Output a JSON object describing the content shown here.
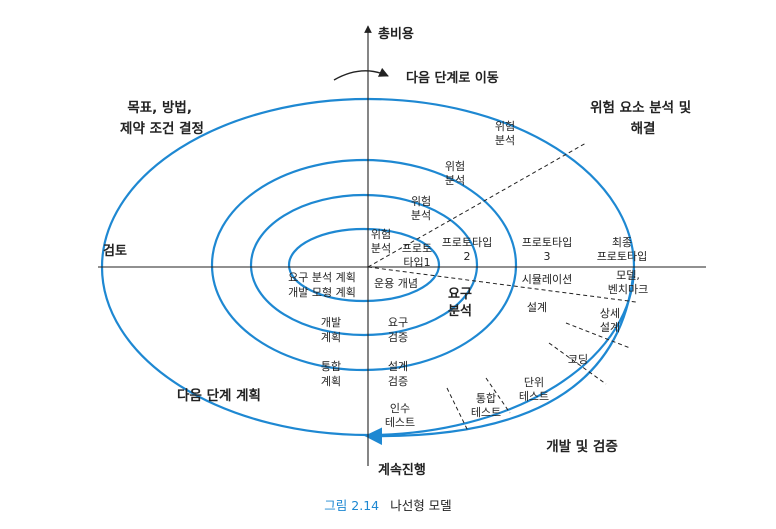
{
  "axes": {
    "top": "총비용",
    "bottom": "계속진행",
    "left": "검토"
  },
  "quadrants": {
    "top_left": [
      "목표, 방법,",
      "제약 조건 결정"
    ],
    "top_right": [
      "위험 요소 분석 및",
      "해결"
    ],
    "bottom_left": "다음 단계 계획",
    "bottom_right": "개발 및 검증"
  },
  "next_phase": "다음 단계로 이동",
  "labels": {
    "risk1": [
      "위험",
      "분석"
    ],
    "risk2": [
      "위험",
      "분석"
    ],
    "risk3": [
      "위험",
      "분석"
    ],
    "risk4": [
      "위험",
      "분석"
    ],
    "proto1": [
      "프로토",
      "타입1"
    ],
    "proto2": [
      "프로토타입",
      "2"
    ],
    "proto3": [
      "프로토타입",
      "3"
    ],
    "final_proto": [
      "최종",
      "프로토타입"
    ],
    "req_plan": [
      "요구 분석 계획",
      "개발 모형 계획"
    ],
    "ops_concept": "운용 개념",
    "req_analysis": [
      "요구",
      "분석"
    ],
    "simulation": "시뮬레이션",
    "model_bench": [
      "모델,",
      "벤치마크"
    ],
    "design": "설계",
    "detail_design": [
      "상세",
      "설계"
    ],
    "coding": "코딩",
    "dev_plan": [
      "개발",
      "계획"
    ],
    "req_verify": [
      "요구",
      "검증"
    ],
    "integ_plan": [
      "통합",
      "계획"
    ],
    "design_verify": [
      "설계",
      "검증"
    ],
    "unit_test": [
      "단위",
      "테스트"
    ],
    "integ_test": [
      "통합",
      "테스트"
    ],
    "accept_test": [
      "인수",
      "테스트"
    ]
  },
  "caption": {
    "number": "그림 2.14",
    "title": "나선형 모델"
  },
  "colors": {
    "spiral": "#1e88d2",
    "axis": "#222222",
    "caption_number": "#1e88d2"
  }
}
